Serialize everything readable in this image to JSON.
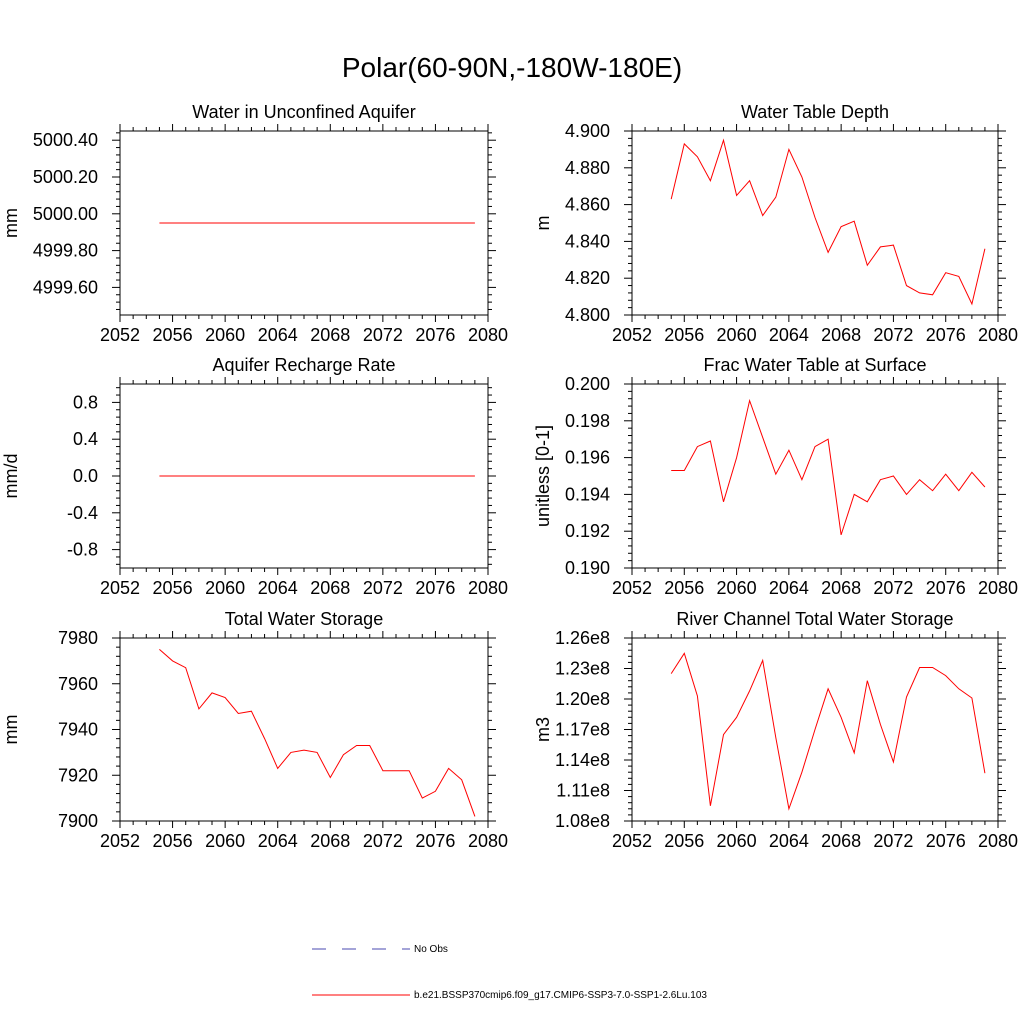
{
  "main_title": "Polar(60-90N,-180W-180E)",
  "colors": {
    "model_line": "#ff0000",
    "obs_line": "#4a4ab0",
    "axis": "#000000"
  },
  "x_tick_labels": [
    "2052",
    "2056",
    "2060",
    "2064",
    "2068",
    "2072",
    "2076",
    "2080"
  ],
  "legend": {
    "obs_label": "No Obs",
    "model_label": "b.e21.BSSP370cmip6.f09_g17.CMIP6-SSP3-7.0-SSP1-2.6Lu.103"
  },
  "chart_data": [
    {
      "type": "line",
      "title": "Water in Unconfined Aquifer",
      "ylabel": "mm",
      "xlim": [
        2052,
        2080
      ],
      "ylim": [
        4999.45,
        5000.45
      ],
      "y_ticks": [
        4999.6,
        4999.8,
        5000.0,
        5000.2,
        5000.4
      ],
      "y_tick_labels": [
        "4999.60",
        "4999.80",
        "5000.00",
        "5000.20",
        "5000.40"
      ],
      "x": [
        2055,
        2056,
        2057,
        2058,
        2059,
        2060,
        2061,
        2062,
        2063,
        2064,
        2065,
        2066,
        2067,
        2068,
        2069,
        2070,
        2071,
        2072,
        2073,
        2074,
        2075,
        2076,
        2077,
        2078,
        2079
      ],
      "series": [
        {
          "values": [
            4999.95,
            4999.95,
            4999.95,
            4999.95,
            4999.95,
            4999.95,
            4999.95,
            4999.95,
            4999.95,
            4999.95,
            4999.95,
            4999.95,
            4999.95,
            4999.95,
            4999.95,
            4999.95,
            4999.95,
            4999.95,
            4999.95,
            4999.95,
            4999.95,
            4999.95,
            4999.95,
            4999.95,
            4999.95
          ]
        }
      ]
    },
    {
      "type": "line",
      "title": "Water Table Depth",
      "ylabel": "m",
      "xlim": [
        2052,
        2080
      ],
      "ylim": [
        4.8,
        4.9
      ],
      "y_ticks": [
        4.8,
        4.82,
        4.84,
        4.86,
        4.88,
        4.9
      ],
      "y_tick_labels": [
        "4.800",
        "4.820",
        "4.840",
        "4.860",
        "4.880",
        "4.900"
      ],
      "x": [
        2055,
        2056,
        2057,
        2058,
        2059,
        2060,
        2061,
        2062,
        2063,
        2064,
        2065,
        2066,
        2067,
        2068,
        2069,
        2070,
        2071,
        2072,
        2073,
        2074,
        2075,
        2076,
        2077,
        2078,
        2079
      ],
      "series": [
        {
          "values": [
            4.863,
            4.893,
            4.886,
            4.873,
            4.895,
            4.865,
            4.873,
            4.854,
            4.864,
            4.89,
            4.875,
            4.853,
            4.834,
            4.848,
            4.851,
            4.827,
            4.837,
            4.838,
            4.816,
            4.812,
            4.811,
            4.823,
            4.821,
            4.806,
            4.836
          ]
        }
      ]
    },
    {
      "type": "line",
      "title": "Aquifer Recharge Rate",
      "ylabel": "mm/d",
      "xlim": [
        2052,
        2080
      ],
      "ylim": [
        -1.0,
        1.0
      ],
      "y_ticks": [
        -0.8,
        -0.4,
        0.0,
        0.4,
        0.8
      ],
      "y_tick_labels": [
        "-0.8",
        "-0.4",
        "0.0",
        "0.4",
        "0.8"
      ],
      "x": [
        2055,
        2056,
        2057,
        2058,
        2059,
        2060,
        2061,
        2062,
        2063,
        2064,
        2065,
        2066,
        2067,
        2068,
        2069,
        2070,
        2071,
        2072,
        2073,
        2074,
        2075,
        2076,
        2077,
        2078,
        2079
      ],
      "series": [
        {
          "values": [
            0,
            0,
            0,
            0,
            0,
            0,
            0,
            0,
            0,
            0,
            0,
            0,
            0,
            0,
            0,
            0,
            0,
            0,
            0,
            0,
            0,
            0,
            0,
            0,
            0
          ]
        }
      ]
    },
    {
      "type": "line",
      "title": "Frac Water Table at Surface",
      "ylabel": "unitless [0-1]",
      "xlim": [
        2052,
        2080
      ],
      "ylim": [
        0.19,
        0.2
      ],
      "y_ticks": [
        0.19,
        0.192,
        0.194,
        0.196,
        0.198,
        0.2
      ],
      "y_tick_labels": [
        "0.190",
        "0.192",
        "0.194",
        "0.196",
        "0.198",
        "0.200"
      ],
      "x": [
        2055,
        2056,
        2057,
        2058,
        2059,
        2060,
        2061,
        2062,
        2063,
        2064,
        2065,
        2066,
        2067,
        2068,
        2069,
        2070,
        2071,
        2072,
        2073,
        2074,
        2075,
        2076,
        2077,
        2078,
        2079
      ],
      "series": [
        {
          "values": [
            0.1953,
            0.1953,
            0.1966,
            0.1969,
            0.1936,
            0.196,
            0.1991,
            0.1971,
            0.1951,
            0.1964,
            0.1948,
            0.1966,
            0.197,
            0.1918,
            0.194,
            0.1936,
            0.1948,
            0.195,
            0.194,
            0.1948,
            0.1942,
            0.1951,
            0.1942,
            0.1952,
            0.1944
          ]
        }
      ]
    },
    {
      "type": "line",
      "title": "Total Water Storage",
      "ylabel": "mm",
      "xlim": [
        2052,
        2080
      ],
      "ylim": [
        7900,
        7980
      ],
      "y_ticks": [
        7900,
        7920,
        7940,
        7960,
        7980
      ],
      "y_tick_labels": [
        "7900",
        "7920",
        "7940",
        "7960",
        "7980"
      ],
      "x": [
        2055,
        2056,
        2057,
        2058,
        2059,
        2060,
        2061,
        2062,
        2063,
        2064,
        2065,
        2066,
        2067,
        2068,
        2069,
        2070,
        2071,
        2072,
        2073,
        2074,
        2075,
        2076,
        2077,
        2078,
        2079
      ],
      "series": [
        {
          "values": [
            7975,
            7970,
            7967,
            7949,
            7956,
            7954,
            7947,
            7948,
            7936,
            7923,
            7930,
            7931,
            7930,
            7919,
            7929,
            7933,
            7933,
            7922,
            7922,
            7922,
            7910,
            7913,
            7923,
            7918,
            7902
          ]
        }
      ]
    },
    {
      "type": "line",
      "title": "River Channel Total Water Storage",
      "ylabel": "m3",
      "xlim": [
        2052,
        2080
      ],
      "ylim": [
        108000000,
        126000000
      ],
      "y_ticks": [
        108000000,
        111000000,
        114000000,
        117000000,
        120000000,
        123000000,
        126000000
      ],
      "y_tick_labels": [
        "1.08e8",
        "1.11e8",
        "1.14e8",
        "1.17e8",
        "1.20e8",
        "1.23e8",
        "1.26e8"
      ],
      "x": [
        2055,
        2056,
        2057,
        2058,
        2059,
        2060,
        2061,
        2062,
        2063,
        2064,
        2065,
        2066,
        2067,
        2068,
        2069,
        2070,
        2071,
        2072,
        2073,
        2074,
        2075,
        2076,
        2077,
        2078,
        2079
      ],
      "series": [
        {
          "values": [
            122500000,
            124500000,
            120300000,
            109500000,
            116500000,
            118200000,
            120800000,
            123800000,
            116200000,
            109200000,
            112800000,
            117000000,
            121000000,
            118200000,
            114700000,
            121800000,
            117500000,
            113800000,
            120200000,
            123100000,
            123100000,
            122300000,
            121000000,
            120100000,
            112700000
          ]
        }
      ]
    }
  ]
}
